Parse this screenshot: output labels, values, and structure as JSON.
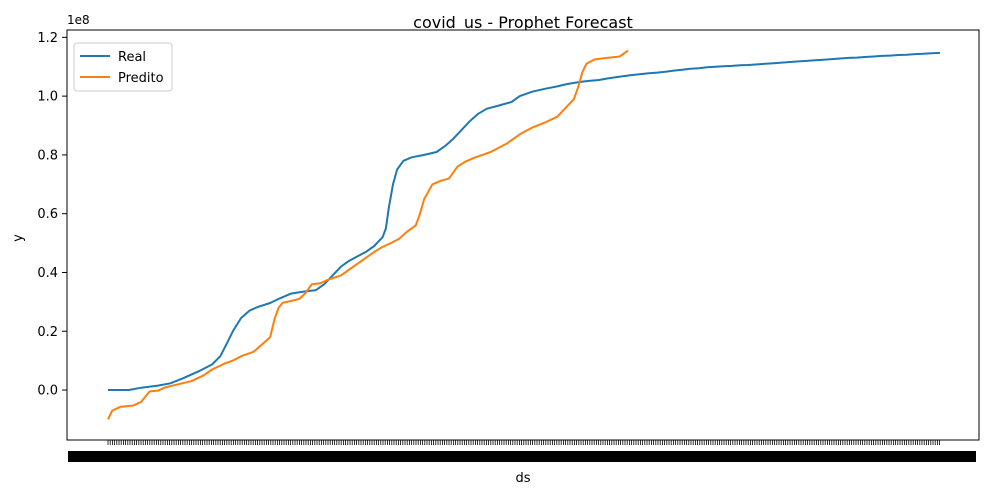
{
  "chart_data": {
    "type": "line",
    "title": "covid_us - Prophet Forecast",
    "xlabel": "ds",
    "ylabel": "y",
    "y_offset_label": "1e8",
    "ylim": [
      -0.17,
      1.225
    ],
    "y_ticks": [
      0.0,
      0.2,
      0.4,
      0.6,
      0.8,
      1.0,
      1.2
    ],
    "y_tick_labels": [
      "0.0",
      "0.2",
      "0.4",
      "0.6",
      "0.8",
      "1.0",
      "1.2"
    ],
    "x_tick_labels_note": "dense overlapping date labels (illegible)",
    "legend": {
      "placement": "upper-left",
      "entries": [
        "Real",
        "Predito"
      ]
    },
    "series": [
      {
        "name": "Real",
        "color": "#1f77b4",
        "points": [
          [
            0.0,
            0.0
          ],
          [
            0.05,
            0.0
          ],
          [
            0.08,
            0.008
          ],
          [
            0.12,
            0.015
          ],
          [
            0.15,
            0.023
          ],
          [
            0.18,
            0.04
          ],
          [
            0.22,
            0.065
          ],
          [
            0.25,
            0.087
          ],
          [
            0.27,
            0.115
          ],
          [
            0.29,
            0.17
          ],
          [
            0.3,
            0.2
          ],
          [
            0.32,
            0.245
          ],
          [
            0.34,
            0.27
          ],
          [
            0.36,
            0.283
          ],
          [
            0.39,
            0.296
          ],
          [
            0.41,
            0.31
          ],
          [
            0.44,
            0.328
          ],
          [
            0.47,
            0.335
          ],
          [
            0.5,
            0.34
          ],
          [
            0.52,
            0.36
          ],
          [
            0.54,
            0.39
          ],
          [
            0.56,
            0.42
          ],
          [
            0.58,
            0.44
          ],
          [
            0.6,
            0.455
          ],
          [
            0.62,
            0.47
          ],
          [
            0.64,
            0.49
          ],
          [
            0.66,
            0.52
          ],
          [
            0.668,
            0.55
          ],
          [
            0.675,
            0.62
          ],
          [
            0.685,
            0.7
          ],
          [
            0.695,
            0.75
          ],
          [
            0.71,
            0.78
          ],
          [
            0.73,
            0.792
          ],
          [
            0.76,
            0.8
          ],
          [
            0.79,
            0.81
          ],
          [
            0.81,
            0.83
          ],
          [
            0.83,
            0.855
          ],
          [
            0.85,
            0.885
          ],
          [
            0.87,
            0.915
          ],
          [
            0.89,
            0.94
          ],
          [
            0.91,
            0.957
          ],
          [
            0.94,
            0.968
          ],
          [
            0.97,
            0.98
          ],
          [
            0.99,
            1.0
          ],
          [
            1.02,
            1.015
          ],
          [
            1.05,
            1.025
          ],
          [
            1.08,
            1.033
          ],
          [
            1.1,
            1.04
          ],
          [
            1.12,
            1.045
          ],
          [
            1.145,
            1.05
          ],
          [
            1.16,
            1.052
          ],
          [
            1.18,
            1.055
          ],
          [
            1.2,
            1.06
          ],
          [
            1.22,
            1.064
          ],
          [
            1.24,
            1.068
          ],
          [
            1.26,
            1.072
          ],
          [
            1.28,
            1.075
          ],
          [
            1.3,
            1.078
          ],
          [
            1.32,
            1.08
          ],
          [
            1.34,
            1.083
          ],
          [
            1.36,
            1.087
          ],
          [
            1.38,
            1.09
          ],
          [
            1.4,
            1.093
          ],
          [
            1.42,
            1.095
          ],
          [
            1.44,
            1.098
          ],
          [
            1.46,
            1.1
          ],
          [
            1.48,
            1.102
          ],
          [
            1.5,
            1.103
          ],
          [
            1.52,
            1.105
          ],
          [
            1.54,
            1.106
          ],
          [
            1.56,
            1.108
          ],
          [
            1.58,
            1.11
          ],
          [
            1.6,
            1.112
          ],
          [
            1.62,
            1.114
          ],
          [
            1.64,
            1.116
          ],
          [
            1.66,
            1.118
          ],
          [
            1.68,
            1.12
          ],
          [
            1.7,
            1.122
          ],
          [
            1.72,
            1.124
          ],
          [
            1.74,
            1.126
          ],
          [
            1.76,
            1.128
          ],
          [
            1.78,
            1.13
          ],
          [
            1.8,
            1.131
          ],
          [
            1.82,
            1.133
          ],
          [
            1.84,
            1.135
          ],
          [
            1.86,
            1.137
          ],
          [
            1.88,
            1.138
          ],
          [
            1.9,
            1.14
          ],
          [
            1.92,
            1.141
          ],
          [
            1.94,
            1.143
          ],
          [
            1.96,
            1.144
          ],
          [
            1.98,
            1.146
          ],
          [
            2.0,
            1.147
          ]
        ]
      },
      {
        "name": "Predito",
        "color": "#ff7f0e",
        "points": [
          [
            0.0,
            -0.1
          ],
          [
            0.01,
            -0.07
          ],
          [
            0.03,
            -0.057
          ],
          [
            0.06,
            -0.053
          ],
          [
            0.08,
            -0.04
          ],
          [
            0.1,
            -0.005
          ],
          [
            0.12,
            -0.002
          ],
          [
            0.14,
            0.01
          ],
          [
            0.17,
            0.02
          ],
          [
            0.2,
            0.03
          ],
          [
            0.23,
            0.05
          ],
          [
            0.25,
            0.07
          ],
          [
            0.28,
            0.09
          ],
          [
            0.3,
            0.1
          ],
          [
            0.32,
            0.115
          ],
          [
            0.35,
            0.13
          ],
          [
            0.37,
            0.155
          ],
          [
            0.39,
            0.18
          ],
          [
            0.4,
            0.24
          ],
          [
            0.41,
            0.28
          ],
          [
            0.42,
            0.297
          ],
          [
            0.44,
            0.303
          ],
          [
            0.46,
            0.31
          ],
          [
            0.475,
            0.33
          ],
          [
            0.49,
            0.36
          ],
          [
            0.51,
            0.363
          ],
          [
            0.53,
            0.376
          ],
          [
            0.56,
            0.39
          ],
          [
            0.58,
            0.41
          ],
          [
            0.6,
            0.43
          ],
          [
            0.62,
            0.45
          ],
          [
            0.64,
            0.47
          ],
          [
            0.66,
            0.487
          ],
          [
            0.68,
            0.5
          ],
          [
            0.7,
            0.515
          ],
          [
            0.72,
            0.54
          ],
          [
            0.74,
            0.56
          ],
          [
            0.75,
            0.6
          ],
          [
            0.76,
            0.65
          ],
          [
            0.78,
            0.7
          ],
          [
            0.8,
            0.712
          ],
          [
            0.82,
            0.72
          ],
          [
            0.84,
            0.76
          ],
          [
            0.86,
            0.778
          ],
          [
            0.88,
            0.79
          ],
          [
            0.9,
            0.8
          ],
          [
            0.92,
            0.81
          ],
          [
            0.94,
            0.825
          ],
          [
            0.96,
            0.84
          ],
          [
            0.99,
            0.87
          ],
          [
            1.02,
            0.893
          ],
          [
            1.05,
            0.91
          ],
          [
            1.08,
            0.93
          ],
          [
            1.1,
            0.96
          ],
          [
            1.12,
            0.99
          ],
          [
            1.13,
            1.03
          ],
          [
            1.14,
            1.08
          ],
          [
            1.15,
            1.11
          ],
          [
            1.17,
            1.125
          ],
          [
            1.2,
            1.13
          ],
          [
            1.23,
            1.135
          ],
          [
            1.25,
            1.155
          ]
        ]
      }
    ]
  }
}
